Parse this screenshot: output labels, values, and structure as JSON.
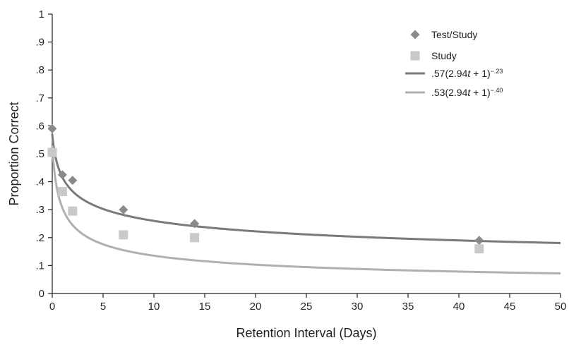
{
  "chart_data": {
    "type": "scatter",
    "xlabel": "Retention Interval (Days)",
    "ylabel": "Proportion Correct",
    "xlim": [
      0,
      50
    ],
    "ylim": [
      0,
      1
    ],
    "x_ticks": [
      0,
      5,
      10,
      15,
      20,
      25,
      30,
      35,
      40,
      45,
      50
    ],
    "x_tick_labels": [
      "0",
      "5",
      "10",
      "15",
      "20",
      "25",
      "30",
      "35",
      "40",
      "45",
      "50"
    ],
    "y_ticks": [
      0,
      0.1,
      0.2,
      0.3,
      0.4,
      0.5,
      0.6,
      0.7,
      0.8,
      0.9,
      1
    ],
    "y_tick_labels": [
      "0",
      ".1",
      ".2",
      ".3",
      ".4",
      ".5",
      ".6",
      ".7",
      ".8",
      ".9",
      "1"
    ],
    "grid": false,
    "legend_position": "top-right",
    "series": [
      {
        "name": "Test/Study",
        "marker": "diamond",
        "color": "#8a8a8a",
        "x": [
          0,
          1,
          2,
          7,
          14,
          42
        ],
        "y": [
          0.59,
          0.425,
          0.405,
          0.3,
          0.25,
          0.19
        ]
      },
      {
        "name": "Study",
        "marker": "square",
        "color": "#c9c9c9",
        "x": [
          0,
          1,
          2,
          7,
          14,
          42
        ],
        "y": [
          0.505,
          0.365,
          0.295,
          0.21,
          0.2,
          0.16
        ]
      }
    ],
    "fits": [
      {
        "label_main": ".57(2.94",
        "label_var": "t",
        "label_rest": " + 1)",
        "label_exp": "−.23",
        "a": 0.57,
        "b": 2.94,
        "c": -0.23,
        "color": "#7a7a7a"
      },
      {
        "label_main": ".53(2.94",
        "label_var": "t",
        "label_rest": " + 1)",
        "label_exp": "−.40",
        "a": 0.53,
        "b": 2.94,
        "c": -0.4,
        "color": "#b0b0b0"
      }
    ]
  }
}
